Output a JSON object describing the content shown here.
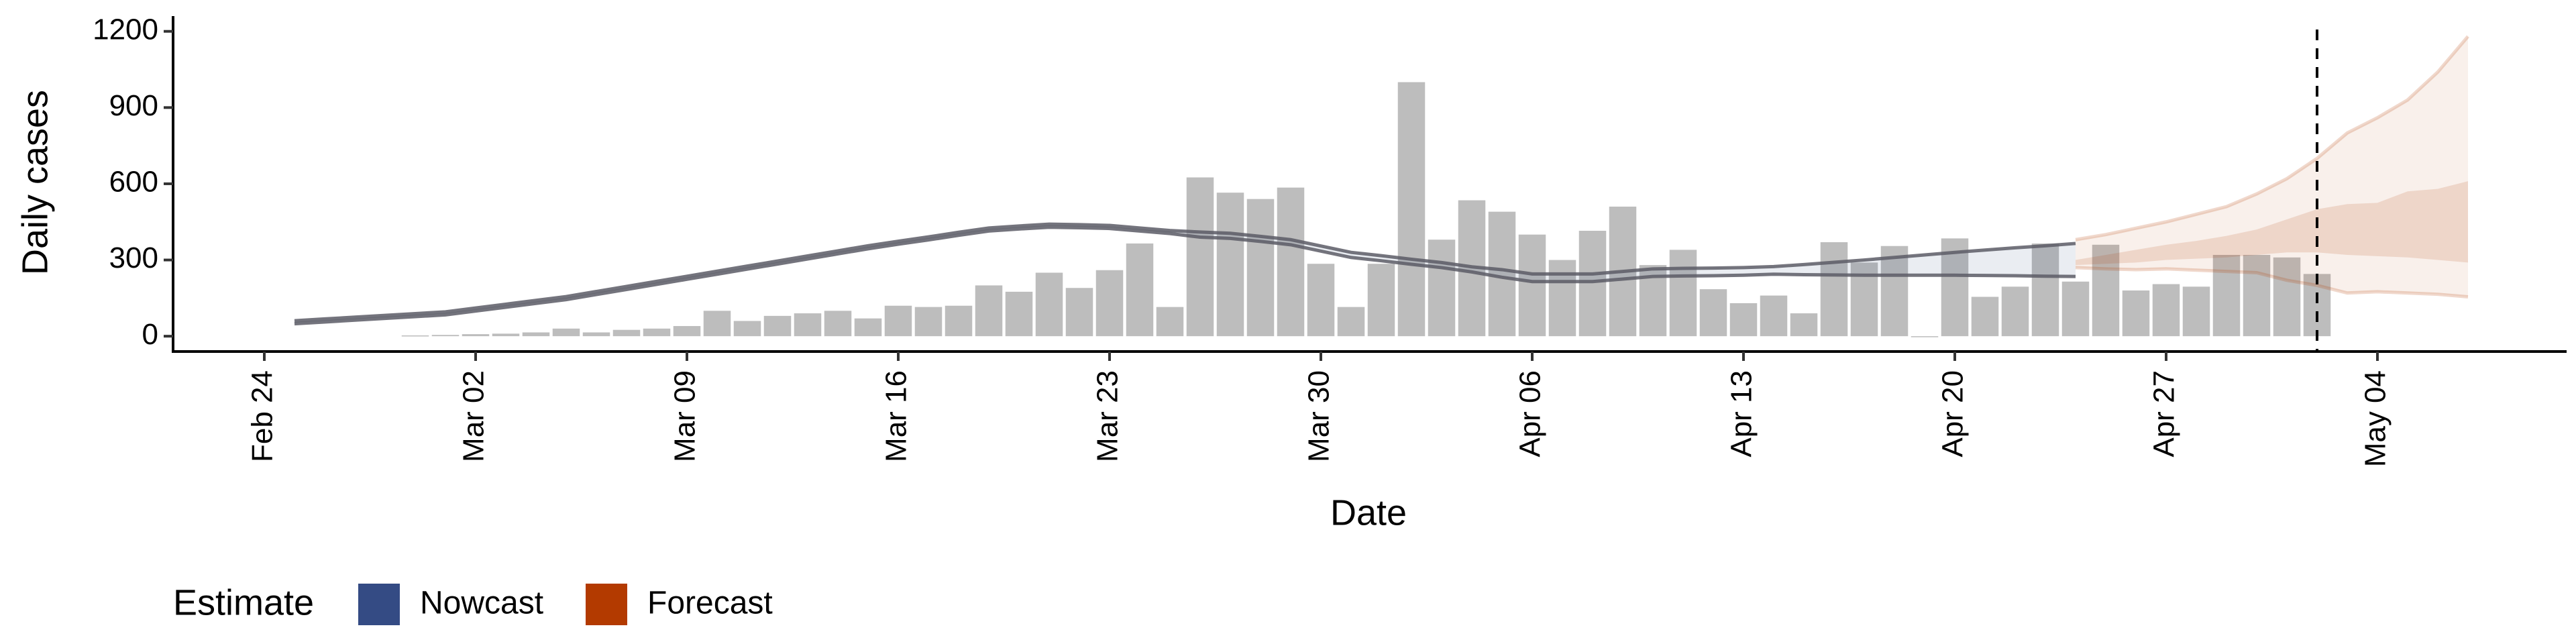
{
  "chart_data": {
    "type": "bar",
    "xlabel": "Date",
    "ylabel": "Daily cases",
    "legend_title": "Estimate",
    "categories": [
      "Feb 24",
      "Feb 25",
      "Feb 26",
      "Feb 27",
      "Feb 28",
      "Feb 29",
      "Mar 01",
      "Mar 02",
      "Mar 03",
      "Mar 04",
      "Mar 05",
      "Mar 06",
      "Mar 07",
      "Mar 08",
      "Mar 09",
      "Mar 10",
      "Mar 11",
      "Mar 12",
      "Mar 13",
      "Mar 14",
      "Mar 15",
      "Mar 16",
      "Mar 17",
      "Mar 18",
      "Mar 19",
      "Mar 20",
      "Mar 21",
      "Mar 22",
      "Mar 23",
      "Mar 24",
      "Mar 25",
      "Mar 26",
      "Mar 27",
      "Mar 28",
      "Mar 29",
      "Mar 30",
      "Mar 31",
      "Apr 01",
      "Apr 02",
      "Apr 03",
      "Apr 04",
      "Apr 05",
      "Apr 06",
      "Apr 07",
      "Apr 08",
      "Apr 09",
      "Apr 10",
      "Apr 11",
      "Apr 12",
      "Apr 13",
      "Apr 14",
      "Apr 15",
      "Apr 16",
      "Apr 17",
      "Apr 18",
      "Apr 19",
      "Apr 20",
      "Apr 21",
      "Apr 22",
      "Apr 23",
      "Apr 24",
      "Apr 25",
      "Apr 26",
      "Apr 27",
      "Apr 28",
      "Apr 29",
      "Apr 30",
      "May 01",
      "May 02",
      "May 03",
      "May 04",
      "May 05",
      "May 06",
      "May 07"
    ],
    "values": [
      null,
      null,
      null,
      null,
      null,
      3,
      5,
      8,
      10,
      15,
      30,
      15,
      25,
      30,
      40,
      100,
      60,
      80,
      90,
      100,
      70,
      120,
      115,
      120,
      200,
      175,
      250,
      190,
      260,
      365,
      115,
      625,
      565,
      540,
      585,
      285,
      115,
      285,
      1000,
      380,
      535,
      490,
      400,
      300,
      415,
      510,
      280,
      340,
      185,
      130,
      160,
      90,
      370,
      290,
      355,
      0,
      385,
      155,
      195,
      365,
      215,
      360,
      180,
      205,
      195,
      320,
      320,
      310,
      245,
      null,
      null,
      null,
      null,
      null
    ],
    "bar_color": "#bdbdbd",
    "line_color": "#5c5c66",
    "series": [
      {
        "name": "Nowcast",
        "color": "#344b84",
        "lower": [
          null,
          49,
          56,
          63,
          70,
          77,
          84,
          99,
          114,
          129,
          144,
          164,
          184,
          204,
          224,
          244,
          264,
          284,
          304,
          324,
          344,
          362,
          379,
          397,
          414,
          422,
          429,
          427,
          424,
          414,
          404,
          390,
          385,
          373,
          360,
          335,
          310,
          297,
          283,
          270,
          253,
          232,
          215,
          215,
          215,
          225,
          235,
          237,
          238,
          240,
          244,
          242,
          241,
          240,
          240,
          240,
          240,
          239,
          238,
          236,
          235,
          null,
          null,
          null,
          null,
          null,
          null,
          null,
          null,
          null,
          null,
          null,
          null,
          null
        ],
        "upper": [
          null,
          61,
          68,
          75,
          82,
          89,
          96,
          111,
          126,
          141,
          156,
          176,
          196,
          216,
          236,
          256,
          276,
          296,
          316,
          336,
          356,
          374,
          391,
          409,
          426,
          434,
          441,
          439,
          436,
          426,
          416,
          410,
          405,
          393,
          380,
          355,
          330,
          317,
          303,
          290,
          273,
          262,
          245,
          245,
          245,
          255,
          265,
          267,
          268,
          270,
          274,
          282,
          291,
          300,
          310,
          320,
          330,
          339,
          348,
          356,
          365,
          null,
          null,
          null,
          null,
          null,
          null,
          null,
          null,
          null,
          null,
          null,
          null,
          null
        ]
      },
      {
        "name": "Forecast",
        "color": "#b33a00",
        "lower": [
          null,
          null,
          null,
          null,
          null,
          null,
          null,
          null,
          null,
          null,
          null,
          null,
          null,
          null,
          null,
          null,
          null,
          null,
          null,
          null,
          null,
          null,
          null,
          null,
          null,
          null,
          null,
          null,
          null,
          null,
          null,
          null,
          null,
          null,
          null,
          null,
          null,
          null,
          null,
          null,
          null,
          null,
          null,
          null,
          null,
          null,
          null,
          null,
          null,
          null,
          null,
          null,
          null,
          null,
          null,
          null,
          null,
          null,
          null,
          null,
          270,
          265,
          262,
          265,
          260,
          255,
          250,
          220,
          200,
          170,
          175,
          170,
          165,
          155
        ],
        "upper": [
          null,
          null,
          null,
          null,
          null,
          null,
          null,
          null,
          null,
          null,
          null,
          null,
          null,
          null,
          null,
          null,
          null,
          null,
          null,
          null,
          null,
          null,
          null,
          null,
          null,
          null,
          null,
          null,
          null,
          null,
          null,
          null,
          null,
          null,
          null,
          null,
          null,
          null,
          null,
          null,
          null,
          null,
          null,
          null,
          null,
          null,
          null,
          null,
          null,
          null,
          null,
          null,
          null,
          null,
          null,
          null,
          null,
          null,
          null,
          null,
          380,
          400,
          425,
          450,
          480,
          510,
          560,
          620,
          700,
          800,
          860,
          930,
          1040,
          1180
        ],
        "inner_lower": [
          null,
          null,
          null,
          null,
          null,
          null,
          null,
          null,
          null,
          null,
          null,
          null,
          null,
          null,
          null,
          null,
          null,
          null,
          null,
          null,
          null,
          null,
          null,
          null,
          null,
          null,
          null,
          null,
          null,
          null,
          null,
          null,
          null,
          null,
          null,
          null,
          null,
          null,
          null,
          null,
          null,
          null,
          null,
          null,
          null,
          null,
          null,
          null,
          null,
          null,
          null,
          null,
          null,
          null,
          null,
          null,
          null,
          null,
          null,
          null,
          280,
          285,
          290,
          300,
          305,
          310,
          320,
          330,
          330,
          320,
          315,
          310,
          300,
          290
        ],
        "inner_upper": [
          null,
          null,
          null,
          null,
          null,
          null,
          null,
          null,
          null,
          null,
          null,
          null,
          null,
          null,
          null,
          null,
          null,
          null,
          null,
          null,
          null,
          null,
          null,
          null,
          null,
          null,
          null,
          null,
          null,
          null,
          null,
          null,
          null,
          null,
          null,
          null,
          null,
          null,
          null,
          null,
          null,
          null,
          null,
          null,
          null,
          null,
          null,
          null,
          null,
          null,
          null,
          null,
          null,
          null,
          null,
          null,
          null,
          null,
          null,
          null,
          300,
          320,
          340,
          360,
          375,
          395,
          420,
          460,
          500,
          520,
          525,
          570,
          580,
          610
        ]
      }
    ],
    "vline": "May 02",
    "xticks": [
      "Feb 24",
      "Mar 02",
      "Mar 09",
      "Mar 16",
      "Mar 23",
      "Mar 30",
      "Apr 06",
      "Apr 13",
      "Apr 20",
      "Apr 27",
      "May 04"
    ],
    "ylim": [
      -55,
      1260
    ],
    "yticks": [
      0,
      300,
      600,
      900,
      1200
    ],
    "grid": false
  }
}
